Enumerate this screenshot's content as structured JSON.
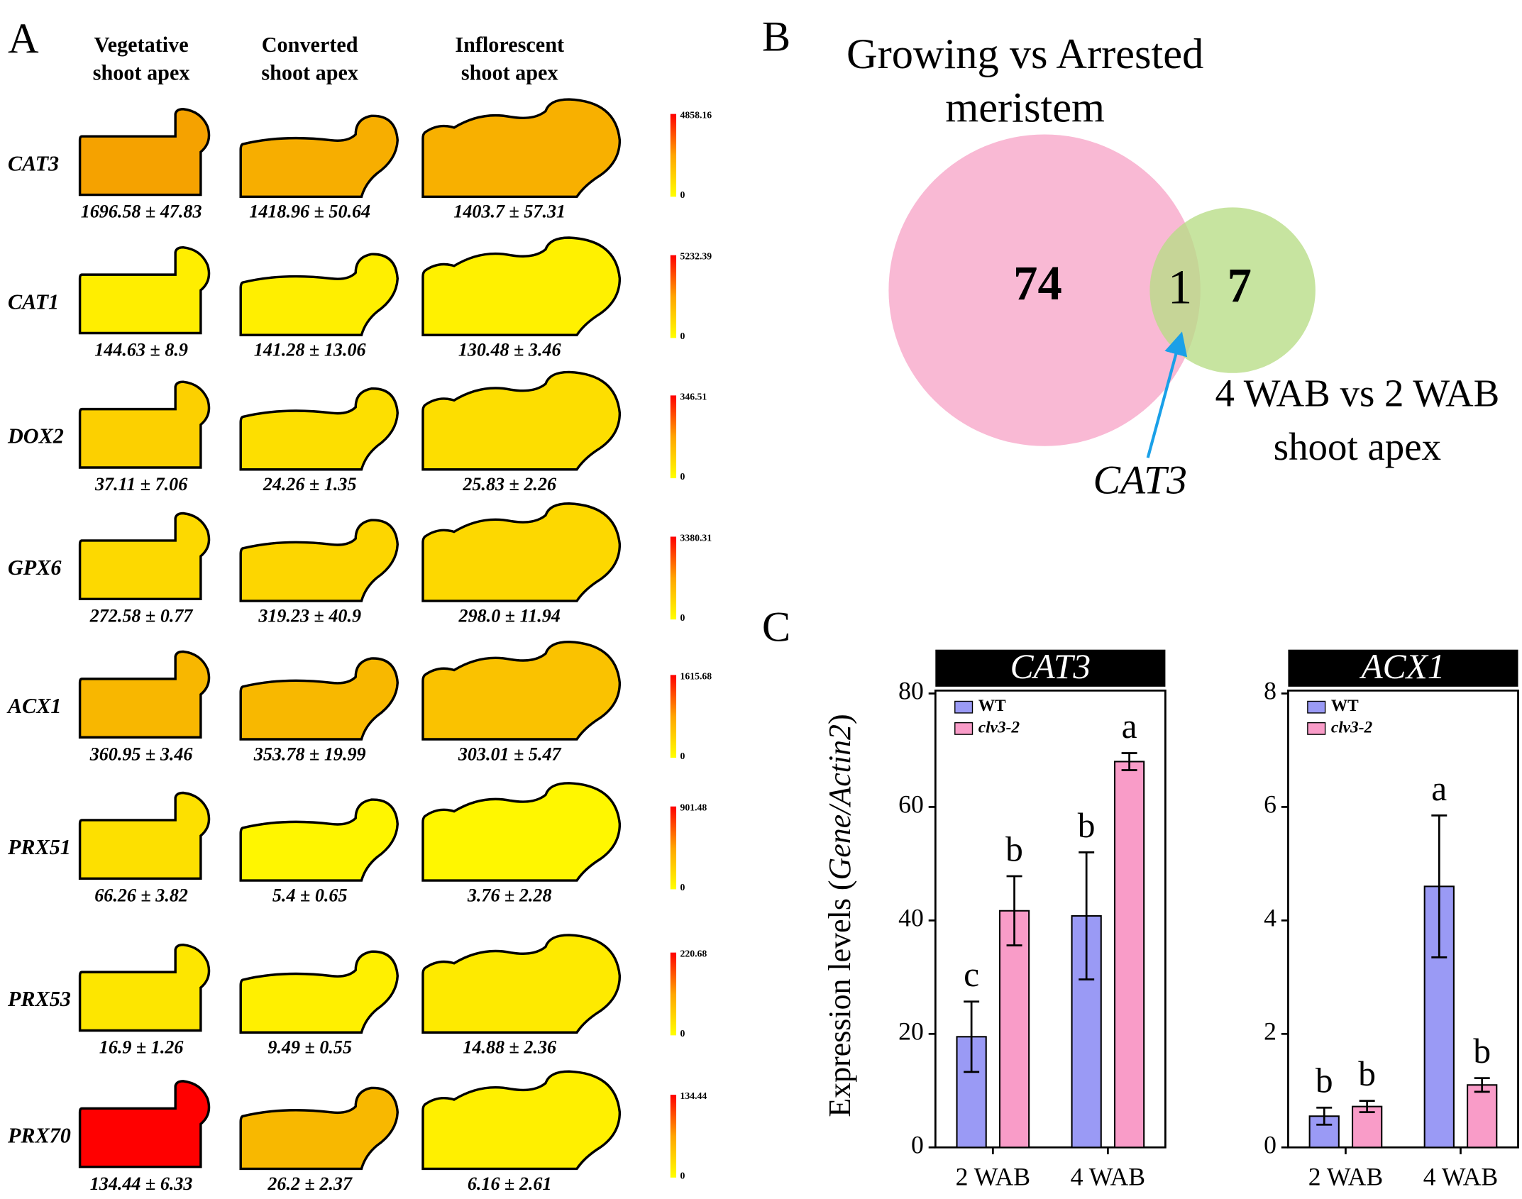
{
  "panel_a": {
    "label": "A",
    "columns": [
      [
        "Vegetative",
        "shoot apex"
      ],
      [
        "Converted",
        "shoot apex"
      ],
      [
        "Inflorescent",
        "shoot apex"
      ]
    ],
    "rows": [
      {
        "gene": "CAT3",
        "values": [
          "1696.58 ± 47.83",
          "1418.96 ± 50.64",
          "1403.7 ± 57.31"
        ],
        "colors": [
          "#f5a200",
          "#f7ae00",
          "#f8b000"
        ],
        "scale": [
          "4858.16",
          "0"
        ]
      },
      {
        "gene": "CAT1",
        "values": [
          "144.63 ± 8.9",
          "141.28 ± 13.06",
          "130.48 ± 3.46"
        ],
        "colors": [
          "#ffee00",
          "#ffef00",
          "#fff100"
        ],
        "scale": [
          "5232.39",
          "0"
        ]
      },
      {
        "gene": "DOX2",
        "values": [
          "37.11 ± 7.06",
          "24.26 ± 1.35",
          "25.83 ± 2.26"
        ],
        "colors": [
          "#fcd000",
          "#fddf00",
          "#fdde00"
        ],
        "scale": [
          "346.51",
          "0"
        ]
      },
      {
        "gene": "GPX6",
        "values": [
          "272.58 ± 0.77",
          "319.23 ± 40.9",
          "298.0 ± 11.94"
        ],
        "colors": [
          "#fdd900",
          "#fdd600",
          "#fdd800"
        ],
        "scale": [
          "3380.31",
          "0"
        ]
      },
      {
        "gene": "ACX1",
        "values": [
          "360.95 ± 3.46",
          "353.78 ± 19.99",
          "303.01 ± 5.47"
        ],
        "colors": [
          "#f8b700",
          "#f8b800",
          "#fac200"
        ],
        "scale": [
          "1615.68",
          "0"
        ]
      },
      {
        "gene": "PRX51",
        "values": [
          "66.26 ± 3.82",
          "5.4 ± 0.65",
          "3.76 ± 2.28"
        ],
        "colors": [
          "#fde000",
          "#fff600",
          "#fff700"
        ],
        "scale": [
          "901.48",
          "0"
        ]
      },
      {
        "gene": "PRX53",
        "values": [
          "16.9 ± 1.26",
          "9.49 ± 0.55",
          "14.88 ± 2.36"
        ],
        "colors": [
          "#fde600",
          "#fff000",
          "#feea00"
        ],
        "scale": [
          "220.68",
          "0"
        ]
      },
      {
        "gene": "PRX70",
        "values": [
          "134.44 ± 6.33",
          "26.2 ± 2.37",
          "6.16 ± 2.61"
        ],
        "colors": [
          "#ff0000",
          "#f8b800",
          "#fff000"
        ],
        "scale": [
          "134.44",
          "0"
        ]
      }
    ]
  },
  "panel_b": {
    "label": "B",
    "set1": [
      "Growing vs Arrested",
      "meristem"
    ],
    "set2": [
      "4 WAB vs 2 WAB",
      "shoot apex"
    ],
    "only1": "74",
    "both": "1",
    "only2": "7",
    "arrow_label": "CAT3",
    "colors": [
      "#f9b9d4",
      "#b7dd85"
    ]
  },
  "panel_c_label": "C",
  "chart_data": [
    {
      "type": "bar",
      "title": "CAT3",
      "y_label": [
        "Expression levels (",
        "Gene/Actin2",
        ")"
      ],
      "categories": [
        "2 WAB",
        "4 WAB"
      ],
      "ylim": [
        0,
        80
      ],
      "yticks": [
        0,
        20,
        40,
        60,
        80
      ],
      "legend": "top-left",
      "series": [
        {
          "name": "WT",
          "color": "#9a9af5",
          "values": [
            19.5,
            40.8
          ],
          "errors": [
            6.2,
            11.2
          ],
          "letters": [
            "c",
            "b"
          ]
        },
        {
          "name": "clv3-2",
          "color": "#f99cc8",
          "values": [
            41.7,
            68.0
          ],
          "errors": [
            6.1,
            1.5
          ],
          "letters": [
            "b",
            "a"
          ]
        }
      ]
    },
    {
      "type": "bar",
      "title": "ACX1",
      "categories": [
        "2 WAB",
        "4 WAB"
      ],
      "ylim": [
        0,
        8
      ],
      "yticks": [
        0,
        2,
        4,
        6,
        8
      ],
      "legend": "top-left",
      "series": [
        {
          "name": "WT",
          "color": "#9a9af5",
          "values": [
            0.55,
            4.6
          ],
          "errors": [
            0.15,
            1.25
          ],
          "letters": [
            "b",
            "a"
          ]
        },
        {
          "name": "clv3-2",
          "color": "#f99cc8",
          "values": [
            0.72,
            1.1
          ],
          "errors": [
            0.1,
            0.12
          ],
          "letters": [
            "b",
            "b"
          ]
        }
      ]
    }
  ]
}
